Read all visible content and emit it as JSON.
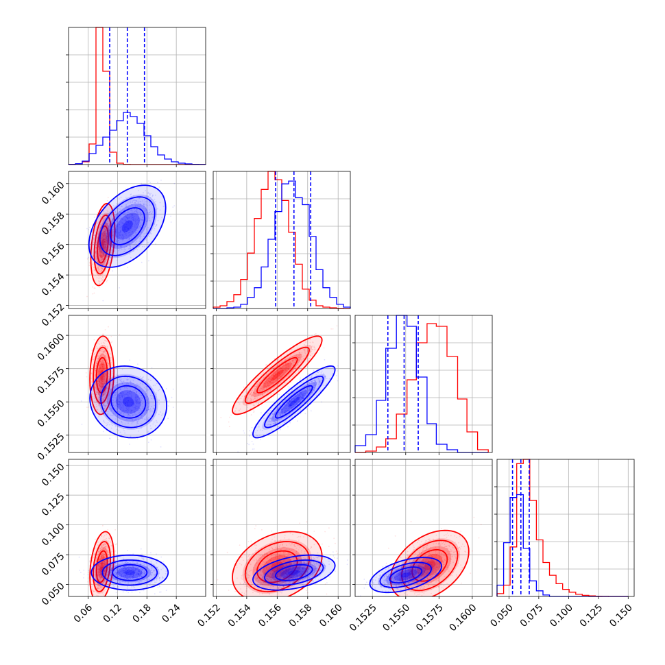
{
  "chart_data": {
    "type": "corner",
    "colors": {
      "red": "#ff0000",
      "blue": "#0000ff"
    },
    "grid": true,
    "series": [
      {
        "color": "red"
      },
      {
        "color": "blue"
      }
    ],
    "params": [
      {
        "range": [
          0.02,
          0.3
        ],
        "ticks": [
          "0.06",
          "0.12",
          "0.18",
          "0.24"
        ],
        "tick_values": [
          0.06,
          0.12,
          0.18,
          0.24
        ]
      },
      {
        "range": [
          0.1518,
          0.1608
        ],
        "ticks": [
          "0.152",
          "0.154",
          "0.156",
          "0.158",
          "0.160"
        ],
        "tick_values": [
          0.152,
          0.154,
          0.156,
          0.158,
          0.16
        ]
      },
      {
        "range": [
          0.1512,
          0.1615
        ],
        "ticks": [
          "0.1525",
          "0.1550",
          "0.1575",
          "0.1600"
        ],
        "tick_values": [
          0.1525,
          0.155,
          0.1575,
          0.16
        ]
      },
      {
        "range": [
          0.04,
          0.155
        ],
        "ticks": [
          "0.050",
          "0.075",
          "0.100",
          "0.125",
          "0.150"
        ],
        "tick_values": [
          0.05,
          0.075,
          0.1,
          0.125,
          0.15
        ]
      }
    ],
    "marginals": [
      {
        "edges": [
          0.02,
          0.034,
          0.048,
          0.062,
          0.076,
          0.09,
          0.104,
          0.118,
          0.132,
          0.146,
          0.16,
          0.174,
          0.188,
          0.202,
          0.216,
          0.23,
          0.244,
          0.258,
          0.272,
          0.286,
          0.3
        ],
        "red": [
          0.0,
          0.004,
          0.02,
          0.15,
          1.0,
          0.68,
          0.09,
          0.01,
          0.001,
          0.0,
          0.0,
          0.0,
          0.0,
          0.0,
          0.0,
          0.0,
          0.0,
          0.0,
          0.0,
          0.0
        ],
        "blue": [
          0.002,
          0.006,
          0.025,
          0.08,
          0.14,
          0.2,
          0.25,
          0.32,
          0.38,
          0.35,
          0.3,
          0.21,
          0.13,
          0.07,
          0.04,
          0.02,
          0.01,
          0.005,
          0.002,
          0.001
        ],
        "quantiles": [
          0.104,
          0.14,
          0.175
        ]
      },
      {
        "edges": [
          0.1518,
          0.15225,
          0.1527,
          0.15315,
          0.1536,
          0.15405,
          0.1545,
          0.15495,
          0.1554,
          0.15585,
          0.1563,
          0.15675,
          0.1572,
          0.15765,
          0.1581,
          0.15855,
          0.159,
          0.15945,
          0.1599,
          0.16035,
          0.1608
        ],
        "red": [
          0.01,
          0.02,
          0.05,
          0.1,
          0.21,
          0.4,
          0.65,
          0.86,
          0.99,
          0.93,
          0.78,
          0.55,
          0.32,
          0.14,
          0.06,
          0.02,
          0.01,
          0.005,
          0.001,
          0.0
        ],
        "blue": [
          0.0,
          0.0,
          0.005,
          0.01,
          0.03,
          0.08,
          0.15,
          0.3,
          0.5,
          0.7,
          0.9,
          0.92,
          0.8,
          0.75,
          0.52,
          0.28,
          0.15,
          0.08,
          0.03,
          0.01
        ],
        "quantiles": [
          0.1559,
          0.1571,
          0.1582
        ]
      },
      {
        "edges": [
          0.1512,
          0.152,
          0.1528,
          0.1535,
          0.1543,
          0.1551,
          0.1558,
          0.1566,
          0.1573,
          0.1581,
          0.1589,
          0.1596,
          0.1604,
          0.1612
        ],
        "red": [
          0.0,
          0.01,
          0.04,
          0.1,
          0.28,
          0.53,
          0.8,
          0.94,
          0.92,
          0.7,
          0.39,
          0.15,
          0.02
        ],
        "blue": [
          0.05,
          0.13,
          0.38,
          0.76,
          1.0,
          0.92,
          0.55,
          0.21,
          0.06,
          0.02,
          0.0,
          0.0,
          0.0
        ],
        "quantiles": [
          0.15366,
          0.15488,
          0.15594
        ]
      },
      {
        "edges": [
          0.04,
          0.0455,
          0.051,
          0.0565,
          0.062,
          0.0675,
          0.073,
          0.0785,
          0.084,
          0.0895,
          0.095,
          0.1005,
          0.106,
          0.1115,
          0.117,
          0.1225,
          0.128,
          0.1335,
          0.139,
          0.1445,
          0.15
        ],
        "red": [
          0.02,
          0.08,
          0.35,
          0.94,
          0.97,
          0.68,
          0.4,
          0.24,
          0.15,
          0.09,
          0.05,
          0.03,
          0.015,
          0.008,
          0.004,
          0.002,
          0.001,
          0.0,
          0.0,
          0.0
        ],
        "blue": [
          0.08,
          0.38,
          0.7,
          0.72,
          0.34,
          0.11,
          0.04,
          0.01,
          0.0,
          0.0,
          0.0,
          0.0,
          0.0,
          0.0,
          0.0,
          0.0,
          0.0,
          0.0,
          0.0,
          0.0
        ],
        "quantiles": [
          0.053,
          0.06,
          0.067
        ]
      }
    ],
    "joints": [
      {
        "i": 1,
        "j": 0,
        "red": {
          "mean": [
            0.09,
            0.156
          ],
          "sd": [
            0.01,
            0.0011
          ],
          "rho": 0.35
        },
        "blue": {
          "mean": [
            0.14,
            0.1572
          ],
          "sd": [
            0.032,
            0.0011
          ],
          "rho": 0.45
        }
      },
      {
        "i": 2,
        "j": 0,
        "red": {
          "mean": [
            0.088,
            0.157
          ],
          "sd": [
            0.01,
            0.0012
          ],
          "rho": 0.1
        },
        "blue": {
          "mean": [
            0.142,
            0.155
          ],
          "sd": [
            0.032,
            0.0011
          ],
          "rho": -0.1
        }
      },
      {
        "i": 2,
        "j": 1,
        "red": {
          "mean": [
            0.156,
            0.157
          ],
          "sd": [
            0.0012,
            0.0012
          ],
          "rho": 0.9
        },
        "blue": {
          "mean": [
            0.1571,
            0.155
          ],
          "sd": [
            0.0011,
            0.0011
          ],
          "rho": 0.9
        }
      },
      {
        "i": 3,
        "j": 0,
        "red": {
          "mean": [
            0.088,
            0.065
          ],
          "sd": [
            0.01,
            0.012
          ],
          "rho": 0.3
        },
        "blue": {
          "mean": [
            0.145,
            0.06
          ],
          "sd": [
            0.032,
            0.006
          ],
          "rho": 0.0
        }
      },
      {
        "i": 3,
        "j": 1,
        "red": {
          "mean": [
            0.156,
            0.065
          ],
          "sd": [
            0.0012,
            0.012
          ],
          "rho": 0.3
        },
        "blue": {
          "mean": [
            0.1571,
            0.06
          ],
          "sd": [
            0.0011,
            0.006
          ],
          "rho": 0.4
        }
      },
      {
        "i": 3,
        "j": 2,
        "red": {
          "mean": [
            0.1568,
            0.066
          ],
          "sd": [
            0.0012,
            0.012
          ],
          "rho": 0.4
        },
        "blue": {
          "mean": [
            0.155,
            0.058
          ],
          "sd": [
            0.0011,
            0.006
          ],
          "rho": 0.5
        }
      }
    ]
  }
}
